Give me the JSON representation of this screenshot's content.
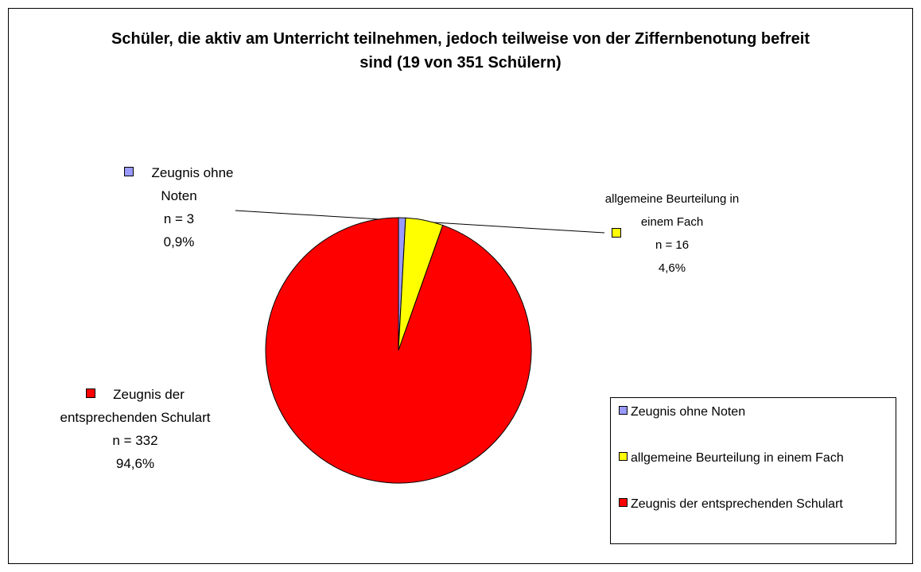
{
  "chart_data": {
    "type": "pie",
    "title": "Schüler, die aktiv am Unterricht teilnehmen, jedoch teilweise von der Ziffernbenotung befreit sind (19 von 351 Schülern)",
    "categories": [
      "Zeugnis ohne Noten",
      "allgemeine Beurteilung in einem Fach",
      "Zeugnis der entsprechenden Schulart"
    ],
    "values": [
      3,
      16,
      332
    ],
    "value_labels": [
      "n = 3",
      "n = 16",
      "n = 332"
    ],
    "percentages": [
      0.9,
      4.6,
      94.6
    ],
    "percentage_labels": [
      "0,9%",
      "4,6%",
      "94,6%"
    ],
    "colors": [
      "#9999ff",
      "#ffff00",
      "#ff0000"
    ],
    "legend": "lower right"
  }
}
